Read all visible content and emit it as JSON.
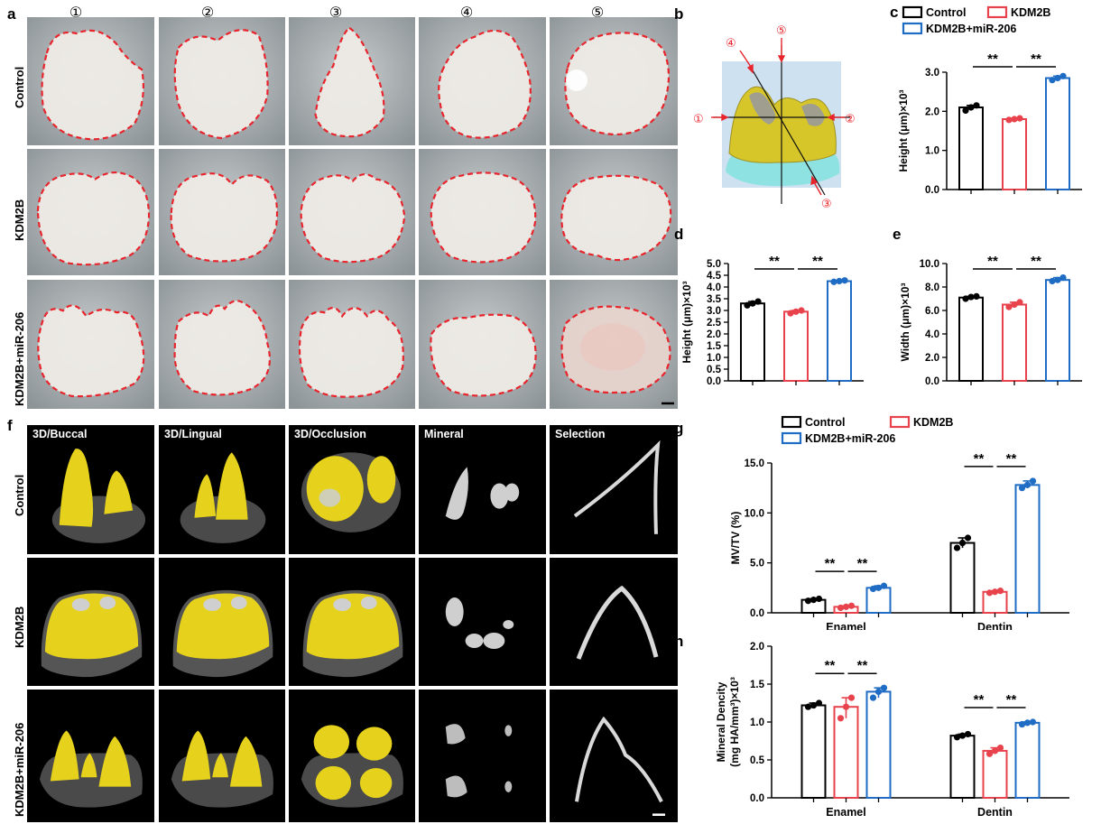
{
  "panel_a": {
    "label": "a",
    "columns": [
      "①",
      "②",
      "③",
      "④",
      "⑤"
    ],
    "rows": [
      "Control",
      "KDM2B",
      "KDM2B+miR-206"
    ]
  },
  "panel_b": {
    "label": "b",
    "markers": [
      "①",
      "②",
      "③",
      "④",
      "⑤"
    ]
  },
  "panel_f": {
    "label": "f",
    "columns": [
      "3D/Buccal",
      "3D/Lingual",
      "3D/Occlusion",
      "Mineral",
      "Selection"
    ],
    "rows": [
      "Control",
      "KDM2B",
      "KDM2B+miR-206"
    ]
  },
  "legend_c": [
    "Control",
    "KDM2B",
    "KDM2B+miR-206"
  ],
  "legend_g": [
    "Control",
    "KDM2B",
    "KDM2B+miR-206"
  ],
  "colors": {
    "control": "#000000",
    "kdm2b": "#e8434c",
    "mir206": "#1f6cc4",
    "outline": "#e8242c",
    "tissue_yellow": "#e6d21c"
  },
  "chart_data": [
    {
      "id": "c",
      "type": "bar",
      "panel_label": "c",
      "series": [
        {
          "name": "Control",
          "values": [
            2.1
          ],
          "points": [
            2.02,
            2.1,
            2.15
          ]
        },
        {
          "name": "KDM2B",
          "values": [
            1.8
          ],
          "points": [
            1.78,
            1.8,
            1.82
          ]
        },
        {
          "name": "KDM2B+miR-206",
          "values": [
            2.85
          ],
          "points": [
            2.8,
            2.85,
            2.9
          ]
        }
      ],
      "ylabel": "Height (μm)×10³",
      "ylim": [
        0,
        3.0
      ],
      "yticks": [
        "0.0",
        "1.0",
        "2.0",
        "3.0"
      ],
      "significance": [
        "**",
        "**"
      ]
    },
    {
      "id": "d",
      "type": "bar",
      "panel_label": "d",
      "series": [
        {
          "name": "Control",
          "values": [
            3.3
          ],
          "points": [
            3.22,
            3.3,
            3.38
          ]
        },
        {
          "name": "KDM2B",
          "values": [
            2.95
          ],
          "points": [
            2.88,
            2.95,
            3.0
          ]
        },
        {
          "name": "KDM2B+miR-206",
          "values": [
            4.25
          ],
          "points": [
            4.22,
            4.25,
            4.28
          ]
        }
      ],
      "ylabel": "Height (μm)×10³",
      "ylim": [
        0,
        5.0
      ],
      "yticks": [
        "0.0",
        "0.5",
        "1.0",
        "1.5",
        "2.0",
        "2.5",
        "3.0",
        "3.5",
        "4.0",
        "4.5",
        "5.0"
      ],
      "significance": [
        "**",
        "**"
      ]
    },
    {
      "id": "e",
      "type": "bar",
      "panel_label": "e",
      "series": [
        {
          "name": "Control",
          "values": [
            7.1
          ],
          "points": [
            7.0,
            7.15,
            7.2
          ]
        },
        {
          "name": "KDM2B",
          "values": [
            6.5
          ],
          "points": [
            6.3,
            6.5,
            6.7
          ]
        },
        {
          "name": "KDM2B+miR-206",
          "values": [
            8.6
          ],
          "points": [
            8.5,
            8.6,
            8.8
          ]
        }
      ],
      "ylabel": "Width (μm)×10³",
      "ylim": [
        0,
        10.0
      ],
      "yticks": [
        "0.0",
        "2.0",
        "4.0",
        "6.0",
        "8.0",
        "10.0"
      ],
      "significance": [
        "**",
        "**"
      ]
    },
    {
      "id": "g",
      "type": "bar",
      "panel_label": "g",
      "categories": [
        "Enamel",
        "Dentin"
      ],
      "series": [
        {
          "name": "Control",
          "values": [
            1.3,
            7.0
          ],
          "points": [
            [
              1.2,
              1.3,
              1.4
            ],
            [
              6.5,
              7.0,
              7.5
            ]
          ]
        },
        {
          "name": "KDM2B",
          "values": [
            0.6,
            2.1
          ],
          "points": [
            [
              0.5,
              0.6,
              0.7
            ],
            [
              2.0,
              2.1,
              2.2
            ]
          ]
        },
        {
          "name": "KDM2B+miR-206",
          "values": [
            2.5,
            12.8
          ],
          "points": [
            [
              2.4,
              2.5,
              2.7
            ],
            [
              12.5,
              12.8,
              13.2
            ]
          ]
        }
      ],
      "ylabel": "MV/TV (%)",
      "ylim": [
        0,
        15.0
      ],
      "yticks": [
        "0.0",
        "5.0",
        "10.0",
        "15.0"
      ],
      "significance": [
        "**",
        "**",
        "**",
        "**"
      ]
    },
    {
      "id": "h",
      "type": "bar",
      "panel_label": "h",
      "categories": [
        "Enamel",
        "Dentin"
      ],
      "series": [
        {
          "name": "Control",
          "values": [
            1.22,
            0.82
          ],
          "points": [
            [
              1.2,
              1.22,
              1.25
            ],
            [
              0.8,
              0.82,
              0.84
            ]
          ]
        },
        {
          "name": "KDM2B",
          "values": [
            1.2,
            0.62
          ],
          "points": [
            [
              1.05,
              1.2,
              1.32
            ],
            [
              0.58,
              0.62,
              0.66
            ]
          ]
        },
        {
          "name": "KDM2B+miR-206",
          "values": [
            1.4,
            0.99
          ],
          "points": [
            [
              1.32,
              1.4,
              1.45
            ],
            [
              0.97,
              0.99,
              1.0
            ]
          ]
        }
      ],
      "ylabel": "Mineral Dencity\n(mg HA/mm³)×10³",
      "ylim": [
        0,
        2.0
      ],
      "yticks": [
        "0.0",
        "0.5",
        "1.0",
        "1.5",
        "2.0"
      ],
      "significance": [
        "**",
        "**",
        "**",
        "**"
      ]
    }
  ]
}
